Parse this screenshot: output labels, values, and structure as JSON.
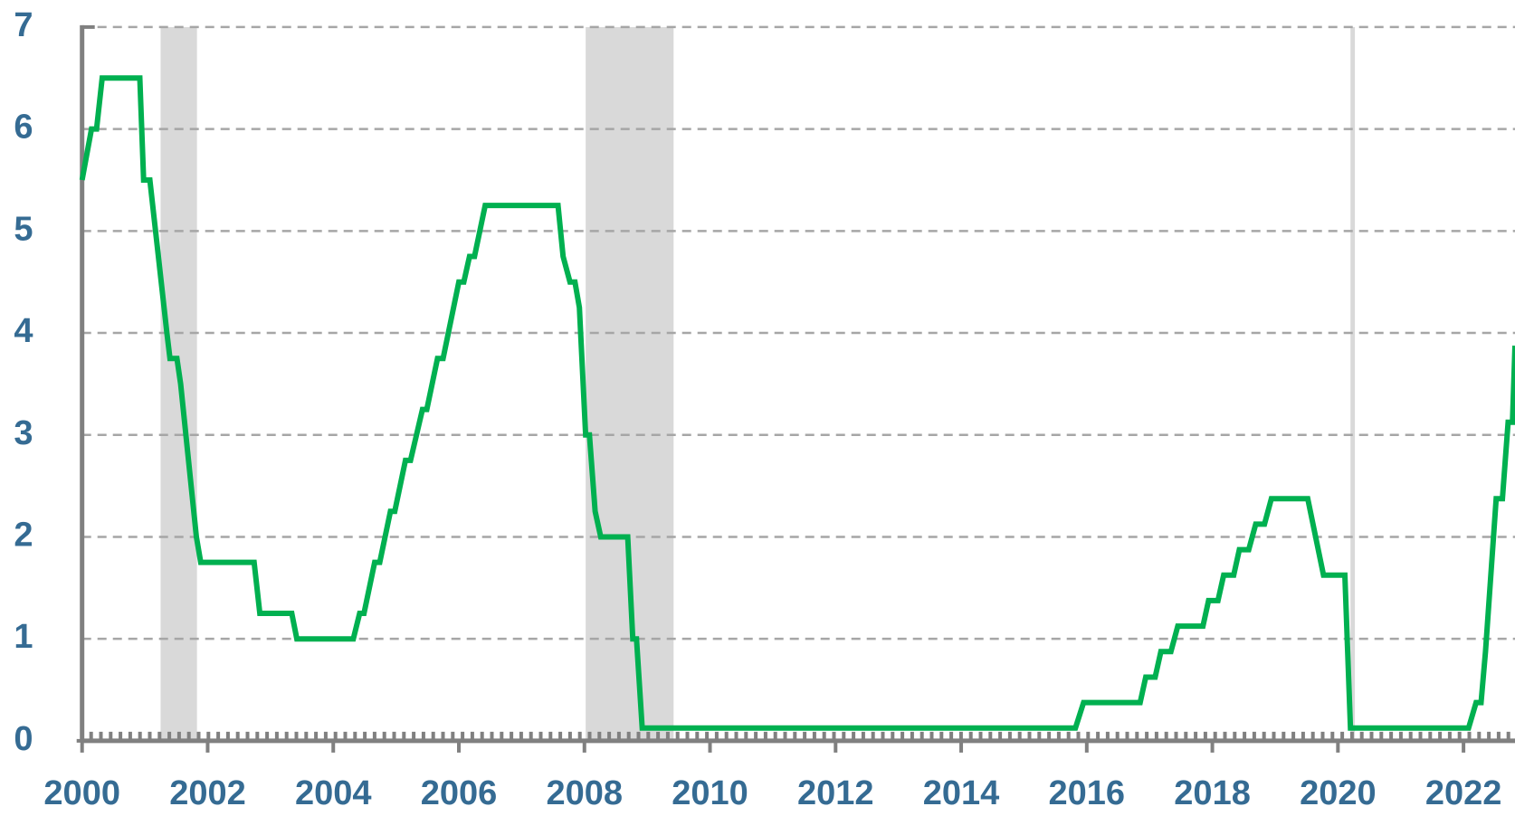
{
  "chart_data": {
    "type": "line",
    "color": "#00b050",
    "grid": true,
    "x": [
      2000.0,
      2000.15,
      2000.23,
      2000.32,
      2000.92,
      2000.98,
      2001.08,
      2001.35,
      2001.4,
      2001.51,
      2001.57,
      2001.82,
      2001.89,
      2002.74,
      2002.83,
      2003.34,
      2003.42,
      2004.32,
      2004.42,
      2004.49,
      2004.66,
      2004.74,
      2004.91,
      2004.98,
      2005.15,
      2005.23,
      2005.42,
      2005.49,
      2005.66,
      2005.75,
      2006.0,
      2006.08,
      2006.17,
      2006.25,
      2006.42,
      2007.58,
      2007.66,
      2007.77,
      2007.85,
      2007.92,
      2008.02,
      2008.08,
      2008.17,
      2008.26,
      2008.69,
      2008.77,
      2008.83,
      2008.92,
      2015.82,
      2015.95,
      2016.85,
      2016.94,
      2017.09,
      2017.18,
      2017.34,
      2017.45,
      2017.85,
      2017.94,
      2018.09,
      2018.18,
      2018.34,
      2018.43,
      2018.58,
      2018.69,
      2018.83,
      2018.94,
      2019.52,
      2019.77,
      2020.11,
      2020.2,
      2022.08,
      2022.2,
      2022.28,
      2022.35,
      2022.52,
      2022.62,
      2022.71,
      2022.78,
      2022.82
    ],
    "values": [
      5.5,
      6.0,
      6.0,
      6.5,
      6.5,
      5.5,
      5.5,
      4.0,
      3.75,
      3.75,
      3.5,
      2.0,
      1.75,
      1.75,
      1.25,
      1.25,
      1.0,
      1.0,
      1.25,
      1.25,
      1.75,
      1.75,
      2.25,
      2.25,
      2.75,
      2.75,
      3.25,
      3.25,
      3.75,
      3.75,
      4.5,
      4.5,
      4.75,
      4.75,
      5.25,
      5.25,
      4.75,
      4.5,
      4.5,
      4.25,
      3.0,
      3.0,
      2.25,
      2.0,
      2.0,
      1.0,
      1.0,
      0.125,
      0.125,
      0.375,
      0.375,
      0.625,
      0.625,
      0.875,
      0.875,
      1.125,
      1.125,
      1.375,
      1.375,
      1.625,
      1.625,
      1.875,
      1.875,
      2.125,
      2.125,
      2.375,
      2.375,
      1.625,
      1.625,
      0.125,
      0.125,
      0.375,
      0.375,
      0.875,
      2.375,
      2.375,
      3.125,
      3.125,
      3.875
    ],
    "shaded_periods": [
      [
        2001.25,
        2001.83
      ],
      [
        2008.02,
        2009.42
      ],
      [
        2020.2,
        2020.27
      ]
    ],
    "xlim": [
      2000,
      2022.82
    ],
    "xticks": [
      2000,
      2002,
      2004,
      2006,
      2008,
      2010,
      2012,
      2014,
      2016,
      2018,
      2020,
      2022
    ],
    "ylim": [
      0,
      7
    ],
    "yticks": [
      0,
      1,
      2,
      3,
      4,
      5,
      6,
      7
    ]
  }
}
